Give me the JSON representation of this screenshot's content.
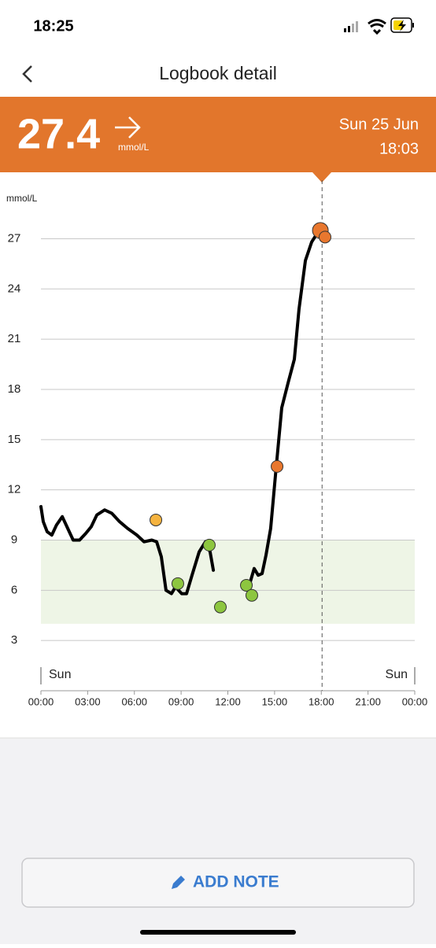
{
  "status_bar": {
    "time": "18:25"
  },
  "header": {
    "title": "Logbook detail"
  },
  "reading": {
    "value": 27.4,
    "unit": "mmol/L",
    "date": "Sun 25 Jun",
    "time": "18:03"
  },
  "chart_data": {
    "type": "line",
    "y_label": "mmol/L",
    "xlim": [
      0,
      24
    ],
    "xticks": [
      {
        "value": 0,
        "label": "00:00"
      },
      {
        "value": 3,
        "label": "03:00"
      },
      {
        "value": 6,
        "label": "06:00"
      },
      {
        "value": 9,
        "label": "09:00"
      },
      {
        "value": 12,
        "label": "12:00"
      },
      {
        "value": 15,
        "label": "15:00"
      },
      {
        "value": 18,
        "label": "18:00"
      },
      {
        "value": 21,
        "label": "21:00"
      },
      {
        "value": 24,
        "label": "00:00"
      }
    ],
    "ylim": [
      0,
      30.5
    ],
    "yticks": [
      3,
      6,
      9,
      12,
      15,
      18,
      21,
      24,
      27
    ],
    "grid": true,
    "target_range": [
      4,
      9
    ],
    "target_color": "#eef5e6",
    "day_labels": [
      "Sun",
      "Sun"
    ],
    "cursor_x": 18.05,
    "series": [
      {
        "color": "#000000",
        "x": [
          0,
          0.15,
          0.4,
          0.7,
          1.0,
          1.37,
          1.72,
          2.07,
          2.48,
          2.88,
          3.23,
          3.59,
          4.09,
          4.55,
          5.05,
          5.56,
          6.16,
          6.62,
          7.12,
          7.43,
          7.73,
          8.03,
          8.38,
          8.64,
          9.04,
          9.35,
          9.7,
          10.16,
          10.56,
          10.86,
          11.07,
          12.1,
          13.14,
          13.44,
          13.69,
          13.95,
          14.2,
          14.45,
          14.75,
          15.06,
          15.46,
          15.87,
          16.27,
          16.57,
          16.98,
          17.38,
          17.79
        ],
        "values": [
          11.0,
          10.1,
          9.5,
          9.3,
          9.9,
          10.4,
          9.7,
          9.0,
          9.0,
          9.4,
          9.8,
          10.5,
          10.8,
          10.6,
          10.1,
          9.7,
          9.3,
          8.9,
          9.0,
          8.9,
          8.0,
          6.0,
          5.8,
          6.2,
          5.8,
          5.8,
          6.9,
          8.3,
          8.9,
          8.3,
          7.2,
          null,
          6.1,
          6.5,
          7.3,
          6.9,
          7.0,
          8.1,
          9.7,
          12.9,
          16.9,
          18.4,
          19.8,
          22.8,
          25.7,
          26.8,
          27.4
        ]
      }
    ],
    "points": {
      "x": [
        7.38,
        8.79,
        10.81,
        11.52,
        13.19,
        13.54,
        15.16,
        17.94,
        18.24
      ],
      "values": [
        10.2,
        6.4,
        8.7,
        5.0,
        6.3,
        5.7,
        13.4,
        27.5,
        27.1
      ],
      "colors": [
        "#f5b33f",
        "#8dc63f",
        "#8dc63f",
        "#8dc63f",
        "#8dc63f",
        "#8dc63f",
        "#e8772e",
        "#e8772e",
        "#e8772e"
      ]
    }
  },
  "button": {
    "label": "ADD NOTE"
  }
}
